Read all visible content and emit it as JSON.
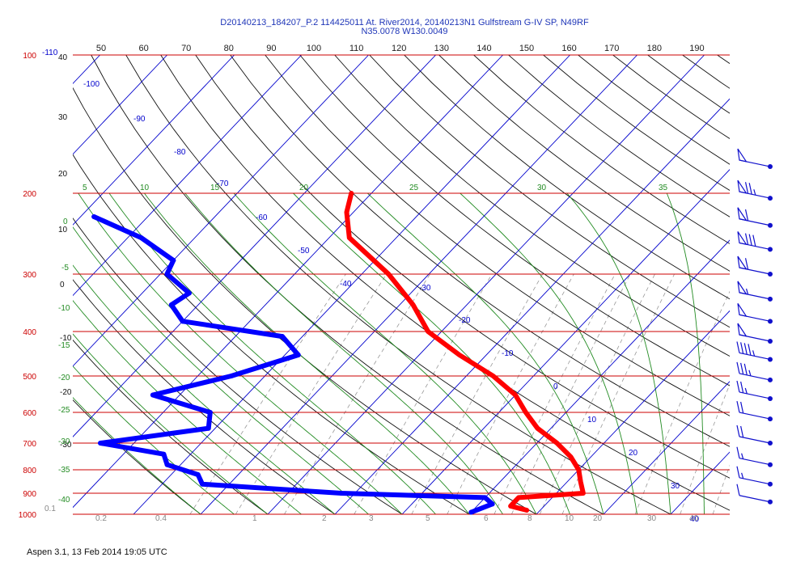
{
  "header": {
    "line1": "D20140213_184207_P.2 114425011 At. River2014, 20140213N1 Gulfstream G-IV SP, N49RF",
    "line2": "N35.0078 W130.0049"
  },
  "footer": "Aspen 3.1, 13 Feb 2014  19:05 UTC",
  "colors": {
    "isobar": "#cc0000",
    "isotherm": "#0000cc",
    "dry_adiabat": "#111111",
    "moist_adiabat": "#228b22",
    "mixing_ratio": "#999999",
    "temperature_trace": "#ff0000",
    "dewpoint_trace": "#0000ff",
    "wind_barb": "#1010cc"
  },
  "chart_data": {
    "type": "skew-t",
    "pressure_ticks": [
      "100",
      "200",
      "300",
      "400",
      "500",
      "600",
      "700",
      "800",
      "900",
      "1000"
    ],
    "top_temperature_ticks": [
      "50",
      "60",
      "70",
      "80",
      "90",
      "100",
      "110",
      "120",
      "130",
      "140",
      "150",
      "160",
      "170",
      "180",
      "190"
    ],
    "isotherm_labels": [
      "-110",
      "-100",
      "-90",
      "-80",
      "-70",
      "-60",
      "-50",
      "-40",
      "-30",
      "-20",
      "-10",
      "0",
      "10",
      "20",
      "30",
      "40"
    ],
    "theta_labels": [
      "40",
      "30",
      "20",
      "10",
      "0",
      "-10",
      "-20",
      "-30"
    ],
    "theta_e_labels": [
      "5",
      "10",
      "15",
      "20",
      "25",
      "30",
      "35",
      "0",
      "-5",
      "-10",
      "-15",
      "-20",
      "-25",
      "-30",
      "-35",
      "-40"
    ],
    "mixing_ratio_labels": [
      "0.1",
      "0.2",
      "0.4",
      "1",
      "2",
      "3",
      "5",
      "6",
      "8",
      "10",
      "20",
      "30",
      "40"
    ],
    "temperature": [
      {
        "p": 200,
        "t": -63
      },
      {
        "p": 220,
        "t": -61
      },
      {
        "p": 250,
        "t": -57
      },
      {
        "p": 300,
        "t": -46
      },
      {
        "p": 350,
        "t": -38
      },
      {
        "p": 400,
        "t": -32
      },
      {
        "p": 450,
        "t": -24
      },
      {
        "p": 500,
        "t": -16
      },
      {
        "p": 550,
        "t": -10
      },
      {
        "p": 600,
        "t": -6
      },
      {
        "p": 650,
        "t": -2
      },
      {
        "p": 700,
        "t": 3
      },
      {
        "p": 750,
        "t": 7
      },
      {
        "p": 800,
        "t": 10
      },
      {
        "p": 850,
        "t": 12
      },
      {
        "p": 900,
        "t": 14
      },
      {
        "p": 920,
        "t": 5
      },
      {
        "p": 940,
        "t": 5
      },
      {
        "p": 960,
        "t": 5
      },
      {
        "p": 980,
        "t": 8
      }
    ],
    "dewpoint": [
      {
        "p": 225,
        "t": -98
      },
      {
        "p": 250,
        "t": -88
      },
      {
        "p": 280,
        "t": -80
      },
      {
        "p": 300,
        "t": -79
      },
      {
        "p": 330,
        "t": -73
      },
      {
        "p": 350,
        "t": -74
      },
      {
        "p": 380,
        "t": -70
      },
      {
        "p": 410,
        "t": -53
      },
      {
        "p": 450,
        "t": -48
      },
      {
        "p": 500,
        "t": -55
      },
      {
        "p": 550,
        "t": -64
      },
      {
        "p": 600,
        "t": -53
      },
      {
        "p": 650,
        "t": -51
      },
      {
        "p": 700,
        "t": -65
      },
      {
        "p": 740,
        "t": -54
      },
      {
        "p": 780,
        "t": -52
      },
      {
        "p": 820,
        "t": -46
      },
      {
        "p": 860,
        "t": -44
      },
      {
        "p": 900,
        "t": -22
      },
      {
        "p": 920,
        "t": 0
      },
      {
        "p": 950,
        "t": 2
      },
      {
        "p": 990,
        "t": 0
      }
    ],
    "wind_barbs": [
      {
        "p": 175,
        "speed": 50
      },
      {
        "p": 205,
        "speed": 75
      },
      {
        "p": 235,
        "speed": 60
      },
      {
        "p": 265,
        "speed": 80
      },
      {
        "p": 300,
        "speed": 60
      },
      {
        "p": 340,
        "speed": 55
      },
      {
        "p": 380,
        "speed": 50
      },
      {
        "p": 420,
        "speed": 50
      },
      {
        "p": 460,
        "speed": 45
      },
      {
        "p": 510,
        "speed": 35
      },
      {
        "p": 560,
        "speed": 25
      },
      {
        "p": 620,
        "speed": 20
      },
      {
        "p": 700,
        "speed": 20
      },
      {
        "p": 780,
        "speed": 15
      },
      {
        "p": 860,
        "speed": 15
      },
      {
        "p": 940,
        "speed": 10
      }
    ]
  }
}
